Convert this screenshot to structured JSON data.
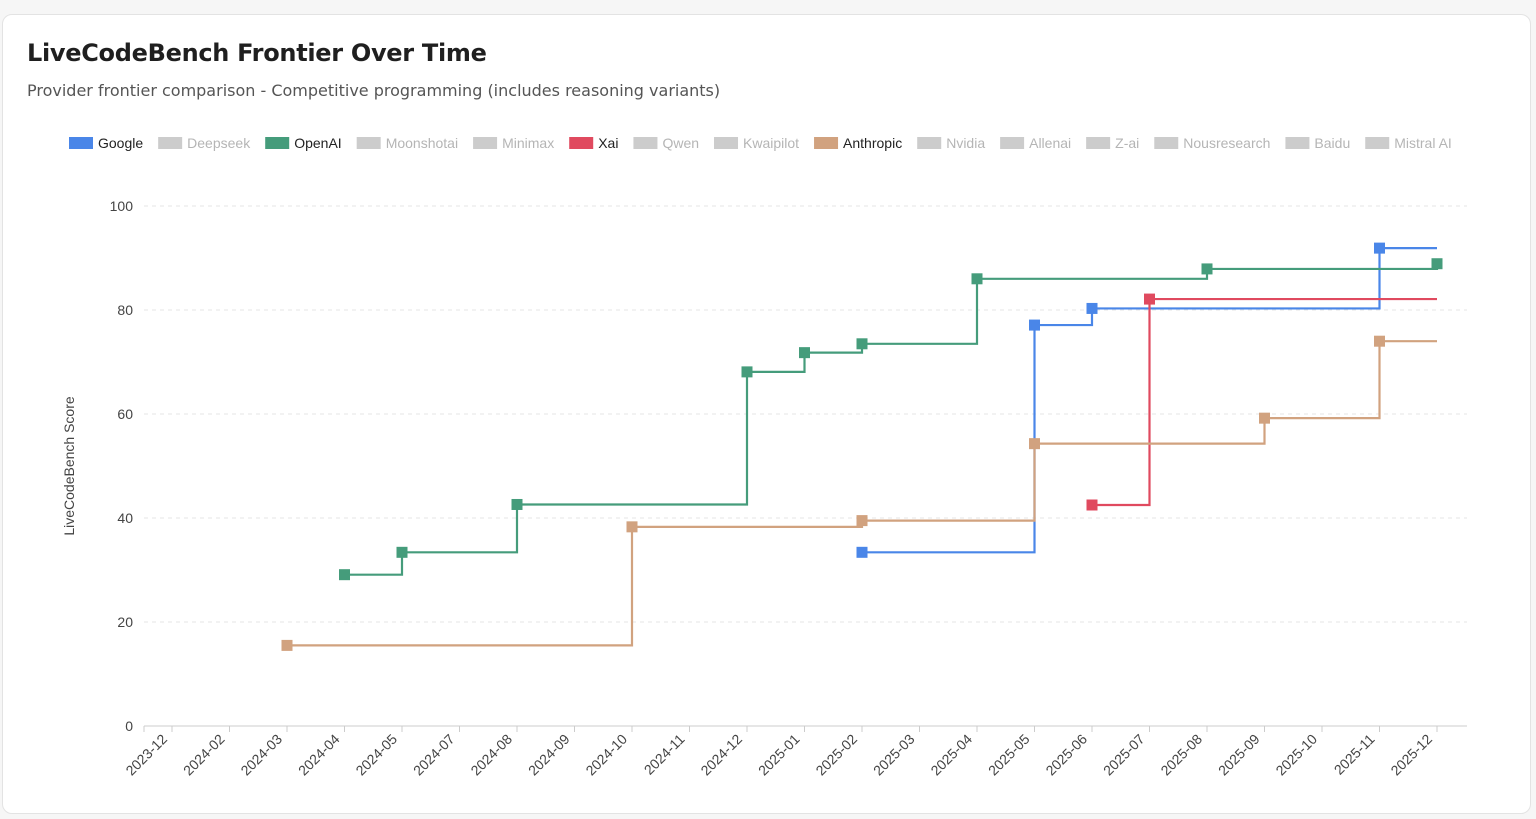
{
  "card": {
    "title": "LiveCodeBench Frontier Over Time",
    "subtitle": "Provider frontier comparison - Competitive programming (includes reasoning variants)"
  },
  "chart_data": {
    "type": "line",
    "step": true,
    "ylabel": "LiveCodeBench Score",
    "ylim": [
      0,
      100
    ],
    "yticks": [
      0,
      20,
      40,
      60,
      80,
      100
    ],
    "grid": true,
    "legend_position": "top",
    "x_tick_labels": [
      "2023-12",
      "2024-02",
      "2024-03",
      "2024-04",
      "2024-05",
      "2024-07",
      "2024-08",
      "2024-09",
      "2024-10",
      "2024-11",
      "2024-12",
      "2025-01",
      "2025-02",
      "2025-03",
      "2025-04",
      "2025-05",
      "2025-06",
      "2025-07",
      "2025-08",
      "2025-09",
      "2025-10",
      "2025-11",
      "2025-12"
    ],
    "legend": [
      {
        "name": "Google",
        "color": "#4a86e8",
        "active": true
      },
      {
        "name": "Deepseek",
        "color": "#cccccc",
        "active": false
      },
      {
        "name": "OpenAI",
        "color": "#459c7b",
        "active": true
      },
      {
        "name": "Moonshotai",
        "color": "#cccccc",
        "active": false
      },
      {
        "name": "Minimax",
        "color": "#cccccc",
        "active": false
      },
      {
        "name": "Xai",
        "color": "#e04a5f",
        "active": true
      },
      {
        "name": "Qwen",
        "color": "#cccccc",
        "active": false
      },
      {
        "name": "Kwaipilot",
        "color": "#cccccc",
        "active": false
      },
      {
        "name": "Anthropic",
        "color": "#d1a27f",
        "active": true
      },
      {
        "name": "Nvidia",
        "color": "#cccccc",
        "active": false
      },
      {
        "name": "Allenai",
        "color": "#cccccc",
        "active": false
      },
      {
        "name": "Z-ai",
        "color": "#cccccc",
        "active": false
      },
      {
        "name": "Nousresearch",
        "color": "#cccccc",
        "active": false
      },
      {
        "name": "Baidu",
        "color": "#cccccc",
        "active": false
      },
      {
        "name": "Mistral AI",
        "color": "#cccccc",
        "active": false
      }
    ],
    "series": [
      {
        "name": "Google",
        "color": "#4a86e8",
        "x": [
          "2025-02",
          "2025-05",
          "2025-06",
          "2025-11"
        ],
        "y": [
          33.4,
          77.1,
          80.3,
          91.9
        ],
        "end": "2025-12"
      },
      {
        "name": "OpenAI",
        "color": "#459c7b",
        "x": [
          "2024-04",
          "2024-05",
          "2024-08",
          "2024-12",
          "2025-01",
          "2025-02",
          "2025-04",
          "2025-08",
          "2025-12"
        ],
        "y": [
          29.1,
          33.4,
          42.6,
          68.1,
          71.8,
          73.5,
          86.0,
          87.9,
          88.9
        ],
        "end": "2025-12"
      },
      {
        "name": "Xai",
        "color": "#e04a5f",
        "x": [
          "2025-06",
          "2025-07"
        ],
        "y": [
          42.5,
          82.1
        ],
        "end": "2025-12"
      },
      {
        "name": "Anthropic",
        "color": "#d1a27f",
        "x": [
          "2024-03",
          "2024-10",
          "2025-02",
          "2025-05",
          "2025-09",
          "2025-11"
        ],
        "y": [
          15.5,
          38.3,
          39.5,
          54.3,
          59.2,
          74.0
        ],
        "end": "2025-12"
      }
    ]
  }
}
